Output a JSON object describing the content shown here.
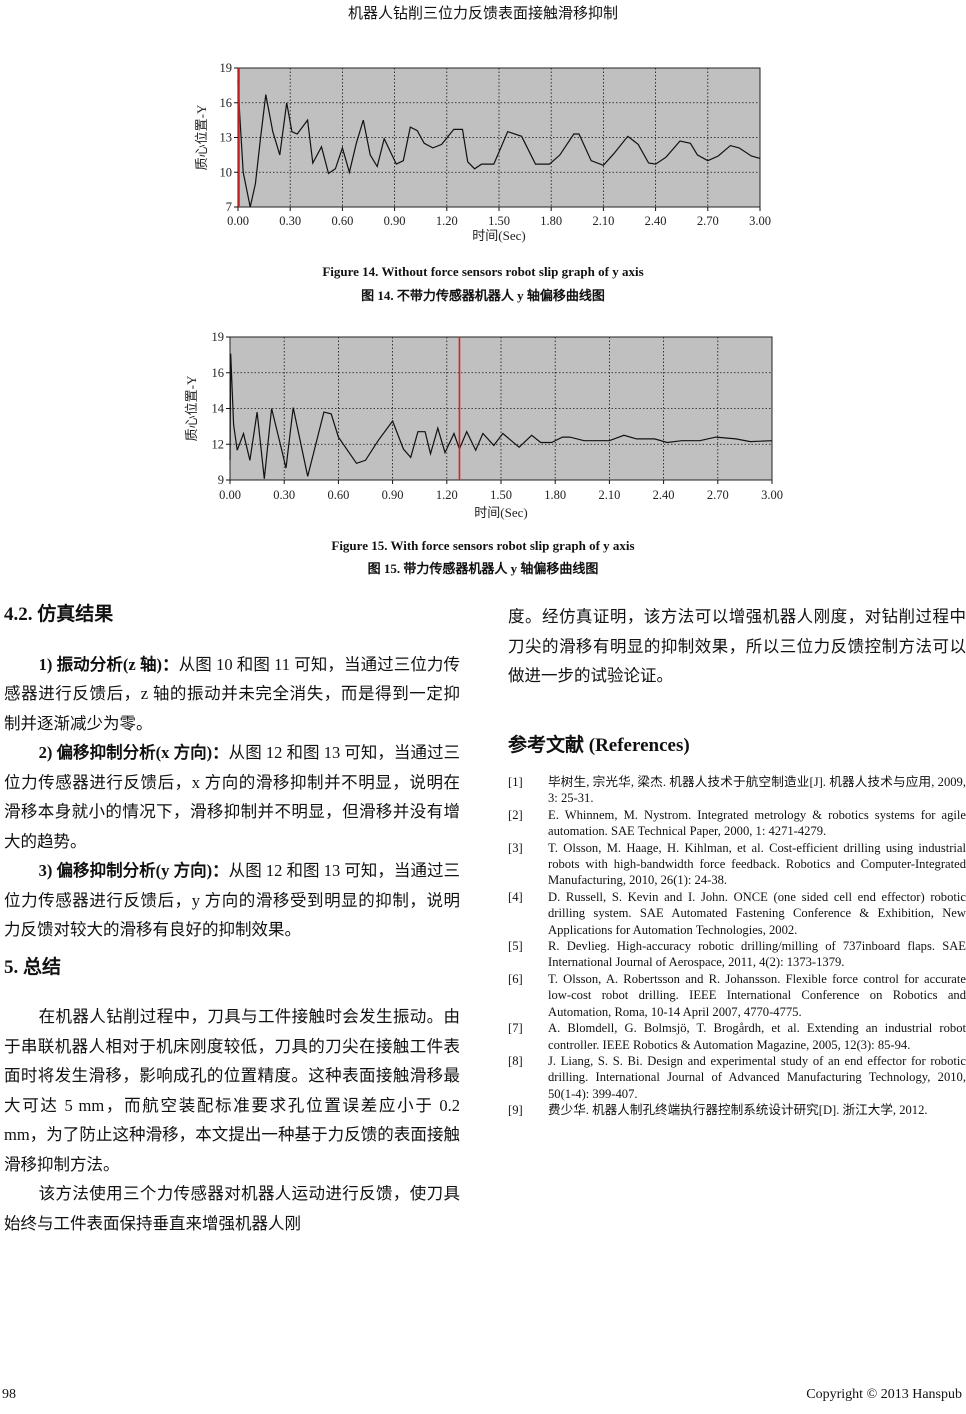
{
  "header": {
    "title": "机器人钻削三位力反馈表面接触滑移抑制"
  },
  "figures": [
    {
      "caption_en": "Figure 14. Without force sensors robot slip graph of y axis",
      "caption_cn": "图 14.  不带力传感器机器人 y 轴偏移曲线图"
    },
    {
      "caption_en": "Figure 15. With force sensors robot slip graph of y axis",
      "caption_cn": "图 15.  带力传感器机器人 y 轴偏移曲线图"
    }
  ],
  "chart_data": [
    {
      "type": "line",
      "xlabel": "时间(Sec)",
      "ylabel": "质心位置-Y",
      "xlim": [
        0,
        3.0
      ],
      "ylim": [
        7,
        19
      ],
      "x_ticks": [
        "0.00",
        "0.30",
        "0.60",
        "0.90",
        "1.20",
        "1.50",
        "1.80",
        "2.10",
        "2.40",
        "2.70",
        "3.00"
      ],
      "y_ticks": [
        "7",
        "10",
        "13",
        "16",
        "19"
      ],
      "grid": true,
      "background": "#c0c0c0",
      "line_color": "#111111",
      "marker_line": {
        "x": 0.0,
        "color": "#e02020"
      },
      "x": [
        0,
        0.01,
        0.03,
        0.07,
        0.1,
        0.13,
        0.16,
        0.2,
        0.24,
        0.28,
        0.31,
        0.34,
        0.4,
        0.43,
        0.48,
        0.52,
        0.56,
        0.6,
        0.64,
        0.68,
        0.72,
        0.76,
        0.8,
        0.84,
        0.91,
        0.95,
        0.99,
        1.03,
        1.07,
        1.12,
        1.17,
        1.24,
        1.29,
        1.32,
        1.36,
        1.4,
        1.47,
        1.55,
        1.63,
        1.71,
        1.79,
        1.85,
        1.93,
        1.96,
        2.03,
        2.1,
        2.16,
        2.24,
        2.3,
        2.36,
        2.4,
        2.46,
        2.54,
        2.6,
        2.64,
        2.7,
        2.76,
        2.83,
        2.88,
        2.95,
        3.0
      ],
      "y": [
        18,
        15,
        10,
        7,
        9,
        13,
        16.7,
        13.5,
        11.5,
        16,
        13.5,
        13.3,
        14.5,
        10.8,
        12.2,
        9.9,
        10.3,
        12.1,
        10,
        12.5,
        14.5,
        11.5,
        10.5,
        12.9,
        10.7,
        11,
        13.9,
        13.6,
        12.5,
        12.1,
        12.4,
        13.7,
        13.7,
        10.9,
        10.3,
        10.7,
        10.7,
        13.5,
        13.1,
        10.7,
        10.7,
        11.5,
        13.3,
        13.3,
        11,
        10.6,
        11.6,
        13.1,
        12.4,
        10.8,
        10.7,
        11.3,
        12.7,
        12.5,
        11.5,
        11,
        11.4,
        12.3,
        12.1,
        11.4,
        11.2
      ]
    },
    {
      "type": "line",
      "xlabel": "时间(Sec)",
      "ylabel": "质心位置-Y",
      "xlim": [
        0,
        3.0
      ],
      "ylim": [
        9,
        19
      ],
      "x_ticks": [
        "0.00",
        "0.30",
        "0.60",
        "0.90",
        "1.20",
        "1.50",
        "1.80",
        "2.10",
        "2.40",
        "2.70",
        "3.00"
      ],
      "y_ticks": [
        "9",
        "12",
        "14",
        "16",
        "19"
      ],
      "grid": true,
      "background": "#c0c0c0",
      "line_color": "#111111",
      "marker_line": {
        "x": 1.27,
        "color": "#e02020"
      },
      "x": [
        0,
        0.004,
        0.02,
        0.04,
        0.075,
        0.11,
        0.15,
        0.19,
        0.23,
        0.28,
        0.31,
        0.35,
        0.43,
        0.52,
        0.56,
        0.6,
        0.7,
        0.75,
        0.82,
        0.9,
        0.96,
        1.0,
        1.04,
        1.08,
        1.11,
        1.15,
        1.19,
        1.24,
        1.27,
        1.31,
        1.36,
        1.4,
        1.46,
        1.51,
        1.6,
        1.67,
        1.72,
        1.78,
        1.84,
        1.88,
        1.96,
        2.1,
        2.18,
        2.25,
        2.35,
        2.42,
        2.5,
        2.6,
        2.69,
        2.8,
        2.88,
        3.0
      ],
      "y": [
        10.65,
        17.6,
        13.1,
        11.5,
        12.6,
        10.65,
        13.8,
        9.1,
        14,
        11.9,
        10,
        14.05,
        9.3,
        13.8,
        13.7,
        12.4,
        10.4,
        10.65,
        12.2,
        13.3,
        11.6,
        10.9,
        12.7,
        12.7,
        11.2,
        12.9,
        11.3,
        12.6,
        11.6,
        12.7,
        11.5,
        12.6,
        11.9,
        12.6,
        11.75,
        12.5,
        12.1,
        12.1,
        12.4,
        12.4,
        12.2,
        12.2,
        12.5,
        12.3,
        12.3,
        12.1,
        12.2,
        12.2,
        12.4,
        12.3,
        12.15,
        12.2
      ]
    }
  ],
  "left": {
    "sec42": "4.2.  仿真结果",
    "p1_lead": "1)  振动分析(z 轴)：",
    "p1": "从图 10 和图 11 可知，当通过三位力传感器进行反馈后，z 轴的振动并未完全消失，而是得到一定抑制并逐渐减少为零。",
    "p2_lead": "2)  偏移抑制分析(x 方向)：",
    "p2": "从图 12 和图 13 可知，当通过三位力传感器进行反馈后，x 方向的滑移抑制并不明显，说明在滑移本身就小的情况下，滑移抑制并不明显，但滑移并没有增大的趋势。",
    "p3_lead": "3)  偏移抑制分析(y 方向)：",
    "p3": "从图 12 和图 13 可知，当通过三位力传感器进行反馈后，y 方向的滑移受到明显的抑制，说明力反馈对较大的滑移有良好的抑制效果。",
    "sec5": "5.  总结",
    "p4": "在机器人钻削过程中，刀具与工件接触时会发生振动。由于串联机器人相对于机床刚度较低，刀具的刀尖在接触工件表面时将发生滑移，影响成孔的位置精度。这种表面接触滑移最大可达 5 mm，而航空装配标准要求孔位置误差应小于 0.2 mm，为了防止这种滑移，本文提出一种基于力反馈的表面接触滑移抑制方法。",
    "p5": "该方法使用三个力传感器对机器人运动进行反馈，使刀具始终与工件表面保持垂直来增强机器人刚"
  },
  "right": {
    "p5_cont": "度。经仿真证明，该方法可以增强机器人刚度，对钻削过程中刀尖的滑移有明显的抑制效果，所以三位力反馈控制方法可以做进一步的试验论证。",
    "refs_title": "参考文献  (References)",
    "refs": [
      {
        "n": "[1]",
        "t": "毕树生, 宗光华, 梁杰. 机器人技术于航空制造业[J]. 机器人技术与应用, 2009, 3: 25-31."
      },
      {
        "n": "[2]",
        "t": "E. Whinnem, M. Nystrom. Integrated metrology & robotics systems for agile automation. SAE Technical Paper, 2000, 1: 4271-4279."
      },
      {
        "n": "[3]",
        "t": "T. Olsson, M. Haage, H. Kihlman, et al. Cost-efficient drilling using industrial robots with high-bandwidth force feedback. Robotics and Computer-Integrated Manufacturing, 2010, 26(1): 24-38."
      },
      {
        "n": "[4]",
        "t": "D. Russell, S. Kevin and I. John. ONCE (one sided cell end effector) robotic drilling system. SAE Automated Fastening Conference & Exhibition, New Applications for Automation Technologies, 2002."
      },
      {
        "n": "[5]",
        "t": "R. Devlieg. High-accuracy robotic drilling/milling of 737inboard flaps. SAE International Journal of Aerospace, 2011, 4(2): 1373-1379."
      },
      {
        "n": "[6]",
        "t": "T. Olsson, A. Robertsson and R. Johansson. Flexible force control for accurate low-cost robot drilling. IEEE International Conference on Robotics and Automation, Roma, 10-14 April 2007, 4770-4775."
      },
      {
        "n": "[7]",
        "t": "A. Blomdell, G. Bolmsjö, T. Brogårdh, et al. Extending an industrial robot controller. IEEE Robotics & Automation Magazine, 2005, 12(3): 85-94."
      },
      {
        "n": "[8]",
        "t": "J. Liang, S. S. Bi. Design and experimental study of an end effector for robotic drilling. International Journal of Advanced Manufacturing Technology, 2010, 50(1-4): 399-407."
      },
      {
        "n": "[9]",
        "t": "费少华. 机器人制孔终端执行器控制系统设计研究[D]. 浙江大学, 2012."
      }
    ]
  },
  "footer": {
    "page": "98",
    "copyright": "Copyright © 2013 Hanspub"
  }
}
